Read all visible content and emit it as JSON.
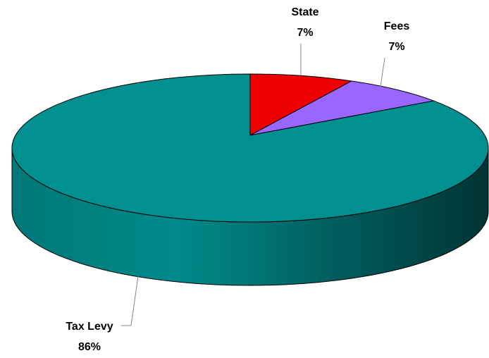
{
  "chart_data": {
    "type": "pie",
    "categories": [
      "State",
      "Fees",
      "Tax Levy"
    ],
    "values": [
      7,
      7,
      86
    ],
    "value_labels": [
      "7%",
      "7%",
      "86%"
    ],
    "colors": [
      "#ee0000",
      "#9966ff",
      "#009090"
    ]
  }
}
